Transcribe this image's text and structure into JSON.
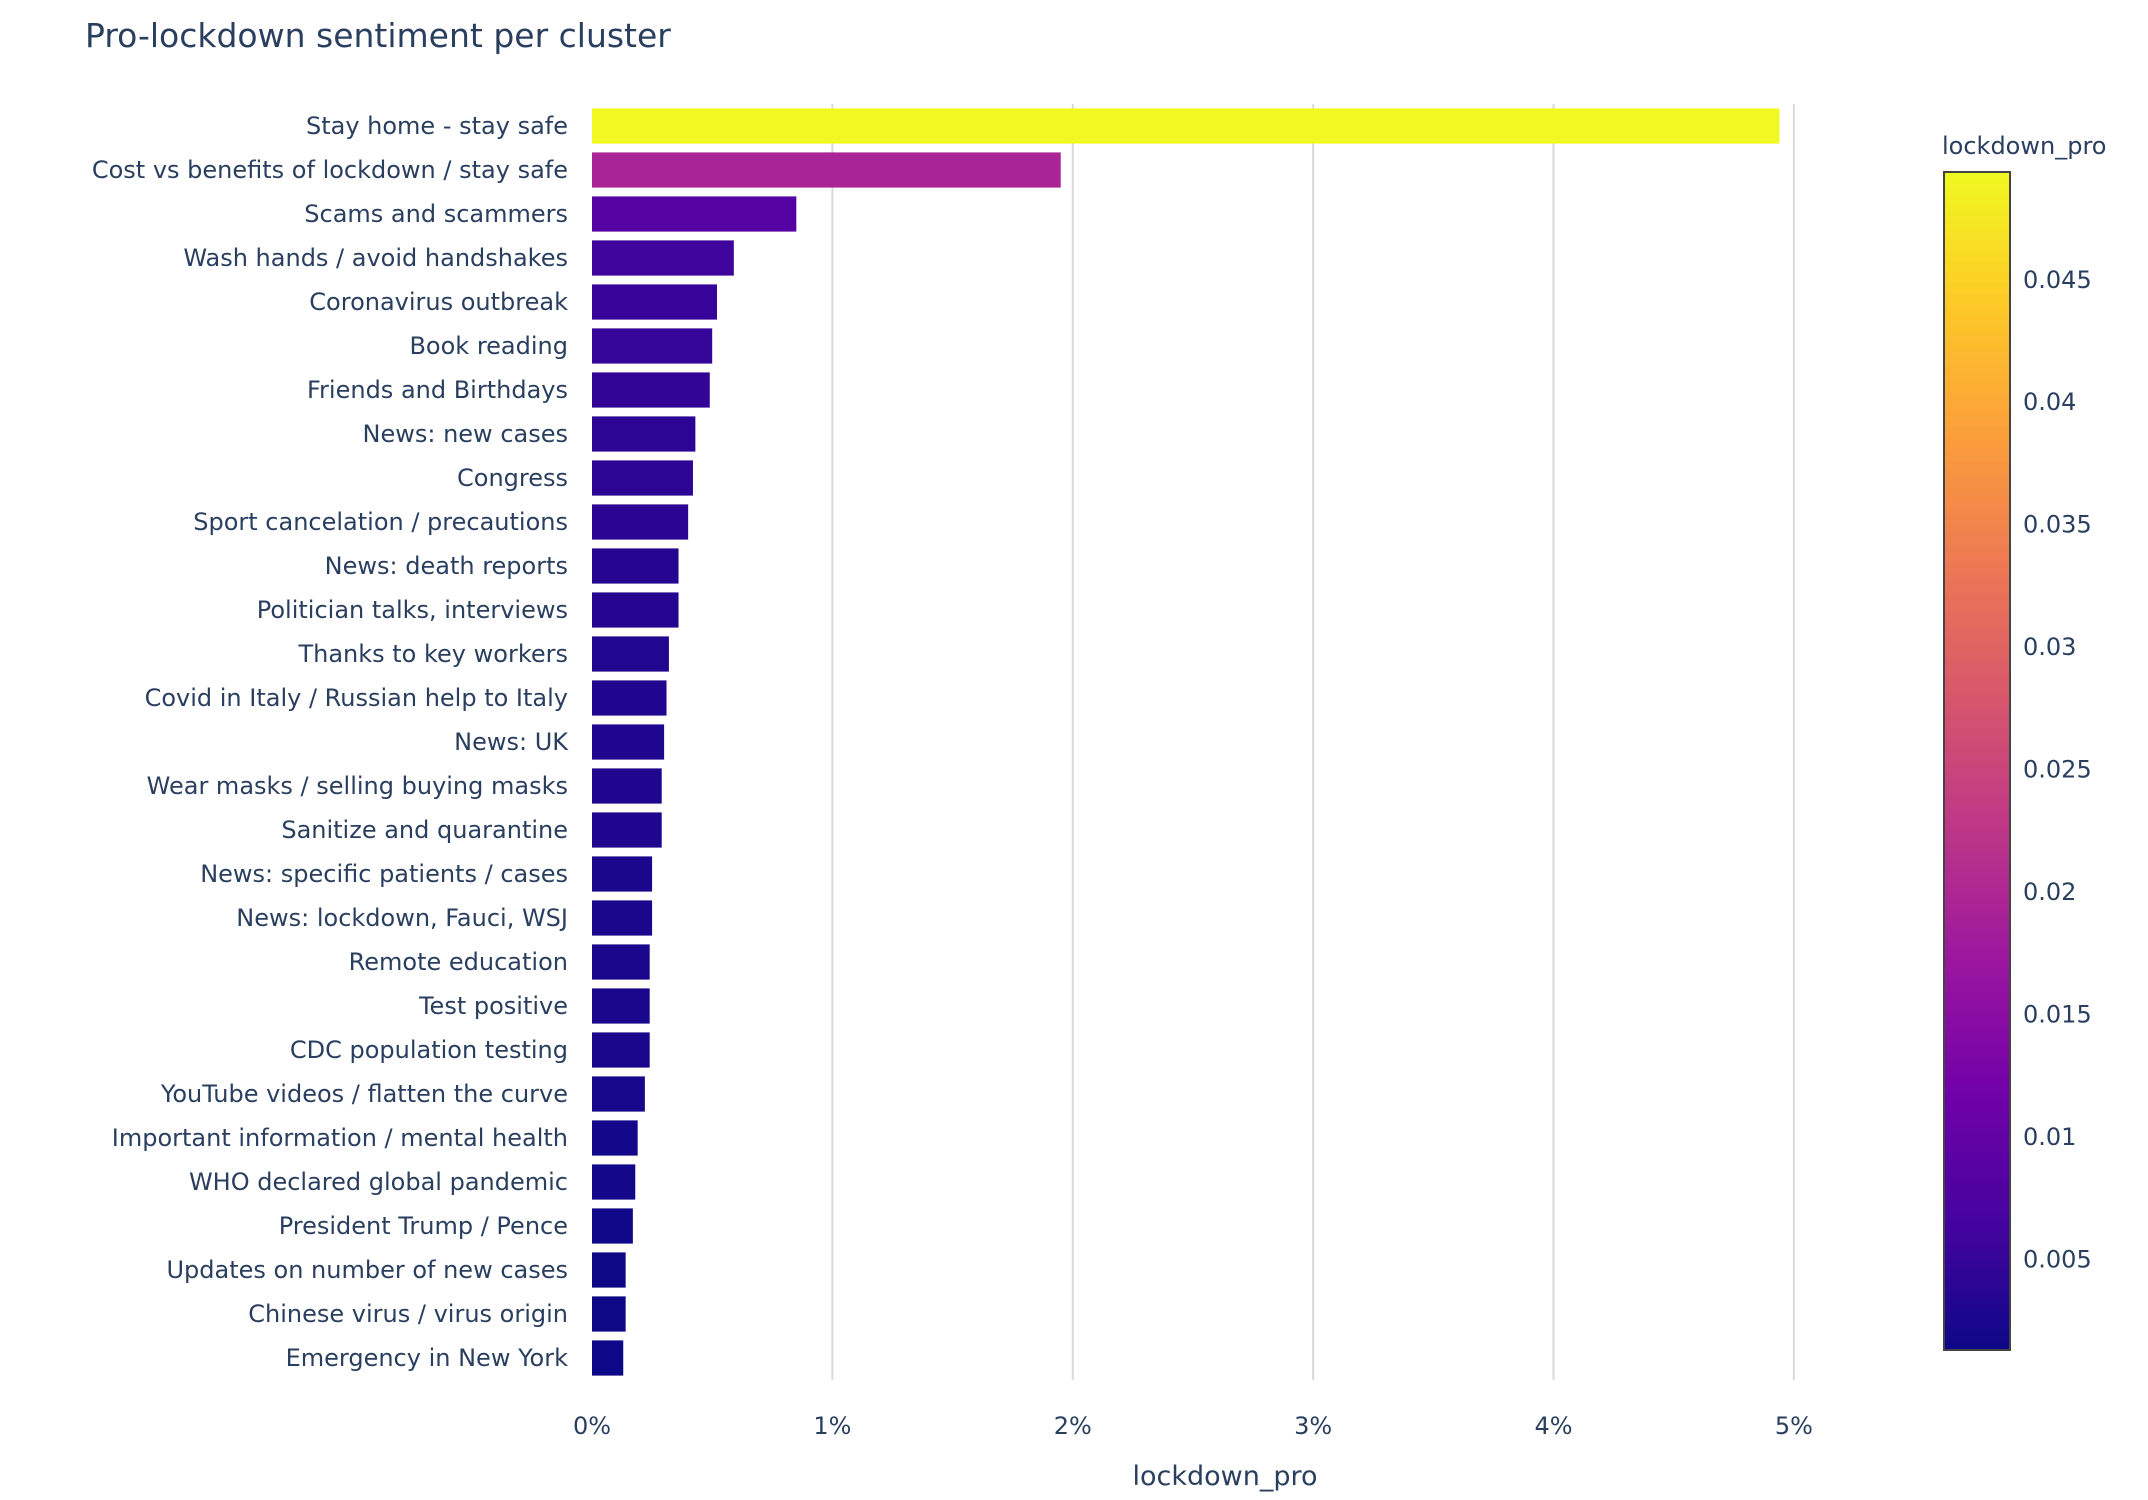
{
  "chart_data": {
    "type": "bar",
    "orientation": "horizontal",
    "title": "Pro-lockdown sentiment per cluster",
    "xlabel": "lockdown_pro",
    "ylabel": "",
    "xlim": [
      0,
      0.053
    ],
    "x_ticks": [
      {
        "value": 0,
        "label": "0%"
      },
      {
        "value": 0.01,
        "label": "1%"
      },
      {
        "value": 0.02,
        "label": "2%"
      },
      {
        "value": 0.03,
        "label": "3%"
      },
      {
        "value": 0.04,
        "label": "4%"
      },
      {
        "value": 0.05,
        "label": "5%"
      }
    ],
    "grid": "vertical",
    "categories": [
      "Stay home - stay safe",
      "Cost vs benefits of lockdown / stay safe",
      "Scams and scammers",
      "Wash hands / avoid handshakes",
      "Coronavirus outbreak",
      "Book reading",
      "Friends and Birthdays",
      "News: new cases",
      "Congress",
      "Sport cancelation / precautions",
      "News: death reports",
      "Politician talks, interviews",
      "Thanks to key workers",
      "Covid in Italy / Russian help to Italy",
      "News: UK",
      "Wear masks / selling buying masks",
      "Sanitize and quarantine",
      "News: specific patients / cases",
      "News: lockdown, Fauci, WSJ",
      "Remote education",
      "Test positive",
      "CDC population testing",
      "YouTube videos / flatten the curve",
      "Important information / mental health",
      "WHO declared global pandemic",
      "President Trump / Pence",
      "Updates on number of new cases",
      "Chinese virus / virus origin",
      "Emergency in New York"
    ],
    "values": [
      0.0494,
      0.0195,
      0.0085,
      0.0059,
      0.0052,
      0.005,
      0.0049,
      0.0043,
      0.0042,
      0.004,
      0.0036,
      0.0036,
      0.0032,
      0.0031,
      0.003,
      0.0029,
      0.0029,
      0.0025,
      0.0025,
      0.0024,
      0.0024,
      0.0024,
      0.0022,
      0.0019,
      0.0018,
      0.0017,
      0.0014,
      0.0014,
      0.0013
    ],
    "colorbar": {
      "title": "lockdown_pro",
      "colorscale": "Plasma",
      "range": [
        0.0013,
        0.0494
      ],
      "ticks": [
        {
          "value": 0.005,
          "label": "0.005"
        },
        {
          "value": 0.01,
          "label": "0.01"
        },
        {
          "value": 0.015,
          "label": "0.015"
        },
        {
          "value": 0.02,
          "label": "0.02"
        },
        {
          "value": 0.025,
          "label": "0.025"
        },
        {
          "value": 0.03,
          "label": "0.03"
        },
        {
          "value": 0.035,
          "label": "0.035"
        },
        {
          "value": 0.04,
          "label": "0.04"
        },
        {
          "value": 0.045,
          "label": "0.045"
        }
      ]
    },
    "colors": {
      "text": "#2a3f5f",
      "grid": "#d9d9d9",
      "plasma": [
        "#0d0887",
        "#46039f",
        "#7201a8",
        "#9c179e",
        "#bd3786",
        "#d8576b",
        "#ed7953",
        "#fb9f3a",
        "#fdca26",
        "#f0f921"
      ]
    }
  }
}
